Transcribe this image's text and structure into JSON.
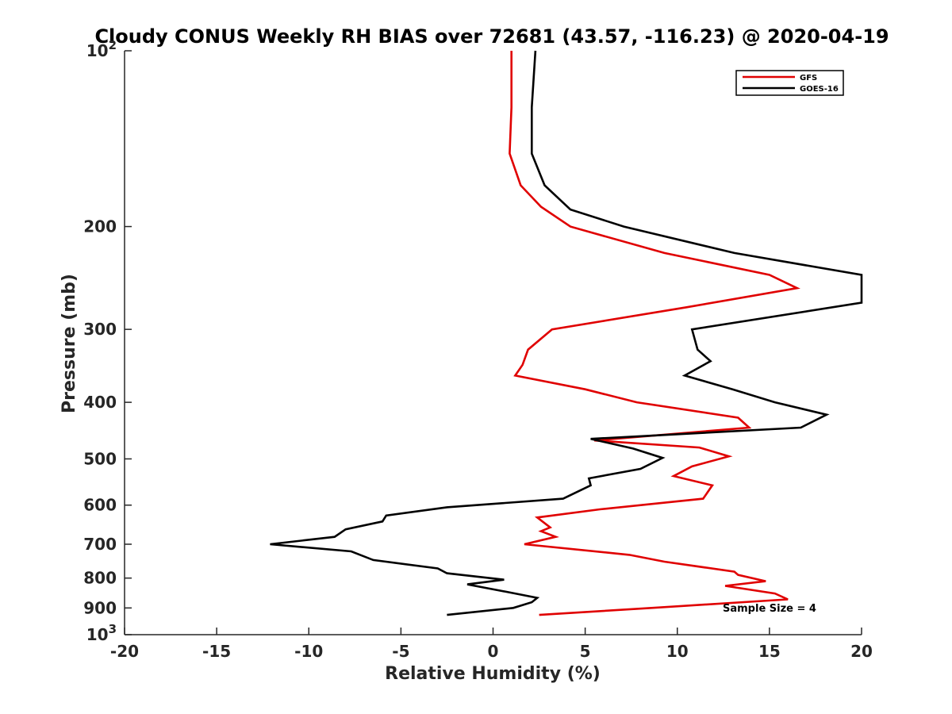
{
  "chart_data": {
    "type": "line",
    "title": "Cloudy CONUS Weekly RH BIAS over 72681 (43.57, -116.23) @ 2020-04-19",
    "xlabel": "Relative Humidity (%)",
    "ylabel": "Pressure (mb)",
    "xlim": [
      -20,
      20
    ],
    "ylim": [
      100,
      1000
    ],
    "y_scale": "log",
    "y_reversed": true,
    "grid": false,
    "legend_position": "top-right",
    "x_ticks": [
      "-20",
      "-15",
      "-10",
      "-5",
      "0",
      "5",
      "10",
      "15",
      "20"
    ],
    "y_ticks": [
      {
        "value": 100,
        "label": "10",
        "sup": "2"
      },
      {
        "value": 200,
        "label": "200"
      },
      {
        "value": 300,
        "label": "300"
      },
      {
        "value": 400,
        "label": "400"
      },
      {
        "value": 500,
        "label": "500"
      },
      {
        "value": 600,
        "label": "600"
      },
      {
        "value": 700,
        "label": "700"
      },
      {
        "value": 800,
        "label": "800"
      },
      {
        "value": 900,
        "label": "900"
      },
      {
        "value": 1000,
        "label": "10",
        "sup": "3"
      }
    ],
    "annotation": "Sample Size = 4",
    "series": [
      {
        "name": "GFS",
        "color": "#e00000",
        "points": [
          [
            1.0,
            100
          ],
          [
            1.0,
            125
          ],
          [
            0.9,
            150
          ],
          [
            1.5,
            170
          ],
          [
            2.6,
            185
          ],
          [
            4.2,
            200
          ],
          [
            9.3,
            222
          ],
          [
            15.0,
            242
          ],
          [
            16.5,
            255
          ],
          [
            10.5,
            275
          ],
          [
            3.2,
            300
          ],
          [
            1.9,
            325
          ],
          [
            1.6,
            345
          ],
          [
            1.2,
            360
          ],
          [
            5.0,
            380
          ],
          [
            7.8,
            400
          ],
          [
            13.3,
            425
          ],
          [
            13.9,
            442
          ],
          [
            5.5,
            465
          ],
          [
            11.2,
            478
          ],
          [
            12.8,
            495
          ],
          [
            10.8,
            515
          ],
          [
            9.8,
            535
          ],
          [
            11.9,
            555
          ],
          [
            11.4,
            585
          ],
          [
            5.8,
            610
          ],
          [
            2.4,
            630
          ],
          [
            3.1,
            655
          ],
          [
            2.6,
            665
          ],
          [
            3.4,
            680
          ],
          [
            1.7,
            700
          ],
          [
            7.4,
            730
          ],
          [
            9.3,
            750
          ],
          [
            13.1,
            780
          ],
          [
            13.3,
            790
          ],
          [
            14.8,
            810
          ],
          [
            12.6,
            825
          ],
          [
            15.3,
            850
          ],
          [
            16.0,
            870
          ],
          [
            8.6,
            900
          ],
          [
            2.5,
            925
          ]
        ]
      },
      {
        "name": "GOES-16",
        "color": "#000000",
        "points": [
          [
            2.3,
            100
          ],
          [
            2.1,
            125
          ],
          [
            2.1,
            150
          ],
          [
            2.8,
            170
          ],
          [
            4.2,
            187
          ],
          [
            7.1,
            200
          ],
          [
            13.1,
            222
          ],
          [
            20.0,
            242
          ],
          [
            20.0,
            270
          ],
          [
            10.8,
            300
          ],
          [
            11.1,
            325
          ],
          [
            11.8,
            340
          ],
          [
            10.4,
            360
          ],
          [
            13.0,
            380
          ],
          [
            15.3,
            400
          ],
          [
            18.1,
            420
          ],
          [
            16.7,
            442
          ],
          [
            5.3,
            462
          ],
          [
            7.6,
            480
          ],
          [
            9.2,
            498
          ],
          [
            8.0,
            520
          ],
          [
            5.2,
            540
          ],
          [
            5.3,
            555
          ],
          [
            3.8,
            585
          ],
          [
            -2.5,
            605
          ],
          [
            -5.8,
            625
          ],
          [
            -6.0,
            640
          ],
          [
            -8.0,
            660
          ],
          [
            -8.6,
            680
          ],
          [
            -12.1,
            700
          ],
          [
            -7.7,
            720
          ],
          [
            -6.5,
            745
          ],
          [
            -3.0,
            770
          ],
          [
            -2.5,
            785
          ],
          [
            0.6,
            805
          ],
          [
            -1.4,
            820
          ],
          [
            1.2,
            850
          ],
          [
            2.4,
            865
          ],
          [
            2.1,
            880
          ],
          [
            1.1,
            900
          ],
          [
            -2.5,
            925
          ]
        ]
      }
    ]
  }
}
